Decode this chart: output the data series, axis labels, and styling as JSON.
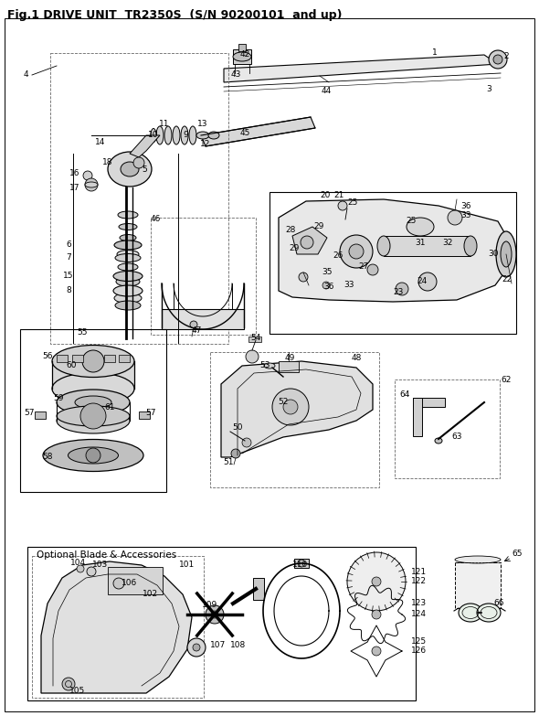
{
  "title": "Fig.1 DRIVE UNIT  TR2350S  (S/N 90200101  and up)",
  "bg_color": "#ffffff",
  "lc": "#000000",
  "tc": "#000000",
  "fig_width": 5.9,
  "fig_height": 7.83,
  "dpi": 100,
  "title_fontsize": 9.0,
  "fs": 6.5
}
